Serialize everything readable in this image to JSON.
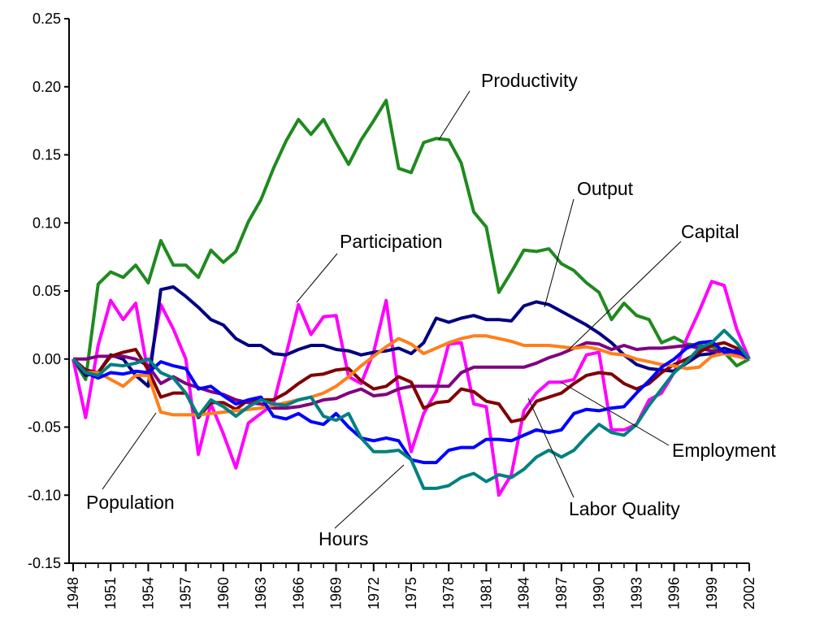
{
  "chart_data": {
    "type": "line",
    "x": [
      1948,
      1949,
      1950,
      1951,
      1952,
      1953,
      1954,
      1955,
      1956,
      1957,
      1958,
      1959,
      1960,
      1961,
      1962,
      1963,
      1964,
      1965,
      1966,
      1967,
      1968,
      1969,
      1970,
      1971,
      1972,
      1973,
      1974,
      1975,
      1976,
      1977,
      1978,
      1979,
      1980,
      1981,
      1982,
      1983,
      1984,
      1985,
      1986,
      1987,
      1988,
      1989,
      1990,
      1991,
      1992,
      1993,
      1994,
      1995,
      1996,
      1997,
      1998,
      1999,
      2000,
      2001,
      2002
    ],
    "xlim": [
      1948,
      2002
    ],
    "xticks": [
      1948,
      1951,
      1954,
      1957,
      1960,
      1963,
      1966,
      1969,
      1972,
      1975,
      1978,
      1981,
      1984,
      1987,
      1990,
      1993,
      1996,
      1999,
      2002
    ],
    "ylim": [
      -0.15,
      0.25
    ],
    "yticks": [
      -0.15,
      {
        "value": -0.1,
        "label": "-0.10"
      },
      -0.05,
      {
        "value": 0,
        "label": "0.00"
      },
      0.05,
      {
        "value": 0.1,
        "label": "0.10"
      },
      0.15,
      {
        "value": 0.2,
        "label": "0.20"
      },
      0.25
    ],
    "series": [
      {
        "name": "Productivity",
        "color": "#1f8a1f",
        "values": [
          0,
          -0.015,
          0.055,
          0.064,
          0.06,
          0.069,
          0.056,
          0.087,
          0.069,
          0.069,
          0.06,
          0.08,
          0.071,
          0.079,
          0.101,
          0.117,
          0.14,
          0.16,
          0.176,
          0.165,
          0.176,
          0.159,
          0.143,
          0.161,
          0.175,
          0.19,
          0.14,
          0.137,
          0.159,
          0.162,
          0.161,
          0.144,
          0.108,
          0.097,
          0.049,
          0.064,
          0.08,
          0.079,
          0.081,
          0.07,
          0.065,
          0.056,
          0.049,
          0.029,
          0.041,
          0.032,
          0.029,
          0.012,
          0.016,
          0.011,
          0.01,
          0.009,
          0.005,
          -0.005,
          0
        ]
      },
      {
        "name": "Output",
        "color": "#ff00ff",
        "values": [
          0,
          -0.043,
          0.01,
          0.043,
          0.029,
          0.041,
          -0.011,
          0.04,
          0.022,
          0,
          -0.07,
          -0.033,
          -0.055,
          -0.08,
          -0.047,
          -0.04,
          -0.033,
          0.003,
          0.04,
          0.018,
          0.031,
          0.032,
          -0.013,
          -0.018,
          0.005,
          0.043,
          -0.025,
          -0.068,
          -0.04,
          -0.024,
          0.011,
          0.012,
          -0.033,
          -0.035,
          -0.1,
          -0.085,
          -0.038,
          -0.025,
          -0.017,
          -0.017,
          -0.015,
          0.003,
          0.005,
          -0.052,
          -0.052,
          -0.048,
          -0.03,
          -0.025,
          -0.01,
          0.015,
          0.035,
          0.057,
          0.054,
          0.022,
          0
        ]
      },
      {
        "name": "Capital",
        "color": "#000080",
        "values": [
          0,
          -0.012,
          -0.01,
          0.003,
          0,
          -0.012,
          -0.02,
          0.051,
          0.053,
          0.046,
          0.038,
          0.029,
          0.025,
          0.015,
          0.01,
          0.01,
          0.004,
          0.003,
          0.007,
          0.01,
          0.01,
          0.007,
          0.006,
          0.003,
          0.005,
          0.006,
          0.008,
          0.004,
          0.012,
          0.03,
          0.027,
          0.03,
          0.032,
          0.029,
          0.029,
          0.028,
          0.039,
          0.042,
          0.04,
          0.035,
          0.03,
          0.025,
          0.019,
          0.012,
          0.003,
          -0.004,
          -0.007,
          -0.008,
          -0.009,
          -0.003,
          0.003,
          0.004,
          0.008,
          0.005,
          0
        ]
      },
      {
        "name": "Participation",
        "color": "#800080",
        "values": [
          0,
          0,
          0.002,
          0.002,
          0.002,
          0,
          -0.005,
          -0.018,
          -0.013,
          -0.018,
          -0.021,
          -0.024,
          -0.026,
          -0.03,
          -0.032,
          -0.033,
          -0.036,
          -0.036,
          -0.035,
          -0.033,
          -0.03,
          -0.029,
          -0.025,
          -0.022,
          -0.027,
          -0.026,
          -0.022,
          -0.02,
          -0.02,
          -0.02,
          -0.02,
          -0.01,
          -0.006,
          -0.006,
          -0.006,
          -0.006,
          -0.006,
          -0.003,
          0.001,
          0.004,
          0.008,
          0.012,
          0.011,
          0.007,
          0.01,
          0.007,
          0.008,
          0.008,
          0.009,
          0.01,
          0.008,
          0.006,
          0.005,
          0.003,
          0
        ]
      },
      {
        "name": "Employment",
        "color": "#800000",
        "values": [
          0,
          -0.008,
          -0.01,
          0.002,
          0.005,
          0.007,
          -0.008,
          -0.028,
          -0.025,
          -0.025,
          -0.043,
          -0.032,
          -0.032,
          -0.037,
          -0.03,
          -0.03,
          -0.03,
          -0.025,
          -0.018,
          -0.012,
          -0.011,
          -0.008,
          -0.007,
          -0.016,
          -0.022,
          -0.02,
          -0.013,
          -0.017,
          -0.036,
          -0.032,
          -0.031,
          -0.022,
          -0.024,
          -0.031,
          -0.033,
          -0.046,
          -0.044,
          -0.031,
          -0.028,
          -0.025,
          -0.018,
          -0.012,
          -0.01,
          -0.011,
          -0.018,
          -0.022,
          -0.018,
          -0.01,
          -0.004,
          0,
          0.005,
          0.01,
          0.012,
          0.008,
          0
        ]
      },
      {
        "name": "Population",
        "color": "#ff7f1a",
        "values": [
          0,
          -0.01,
          -0.01,
          -0.015,
          -0.02,
          -0.012,
          -0.012,
          -0.039,
          -0.041,
          -0.041,
          -0.041,
          -0.04,
          -0.039,
          -0.038,
          -0.037,
          -0.036,
          -0.034,
          -0.032,
          -0.03,
          -0.028,
          -0.025,
          -0.02,
          -0.013,
          -0.005,
          0.002,
          0.009,
          0.015,
          0.011,
          0.004,
          0.008,
          0.012,
          0.015,
          0.017,
          0.017,
          0.015,
          0.013,
          0.01,
          0.01,
          0.01,
          0.009,
          0.008,
          0.009,
          0.007,
          0.004,
          0.003,
          0,
          -0.002,
          -0.004,
          -0.005,
          -0.007,
          -0.006,
          0.002,
          0.004,
          0.002,
          0
        ]
      },
      {
        "name": "Labor Quality",
        "color": "#0000ff",
        "values": [
          0,
          -0.01,
          -0.014,
          -0.01,
          -0.011,
          -0.009,
          -0.01,
          -0.002,
          -0.005,
          -0.007,
          -0.022,
          -0.02,
          -0.027,
          -0.033,
          -0.03,
          -0.028,
          -0.042,
          -0.044,
          -0.04,
          -0.046,
          -0.048,
          -0.04,
          -0.05,
          -0.058,
          -0.06,
          -0.058,
          -0.06,
          -0.074,
          -0.076,
          -0.076,
          -0.067,
          -0.065,
          -0.065,
          -0.059,
          -0.059,
          -0.06,
          -0.056,
          -0.052,
          -0.054,
          -0.052,
          -0.04,
          -0.037,
          -0.038,
          -0.036,
          -0.035,
          -0.025,
          -0.016,
          -0.006,
          0,
          0.008,
          0.012,
          0.013,
          0.005,
          0.006,
          0
        ]
      },
      {
        "name": "Hours",
        "color": "#008080",
        "values": [
          0,
          -0.01,
          -0.012,
          -0.004,
          -0.005,
          -0.003,
          0,
          -0.01,
          -0.014,
          -0.025,
          -0.042,
          -0.03,
          -0.035,
          -0.042,
          -0.035,
          -0.03,
          -0.033,
          -0.034,
          -0.03,
          -0.028,
          -0.042,
          -0.045,
          -0.04,
          -0.058,
          -0.068,
          -0.068,
          -0.067,
          -0.074,
          -0.095,
          -0.095,
          -0.093,
          -0.087,
          -0.084,
          -0.09,
          -0.085,
          -0.087,
          -0.081,
          -0.072,
          -0.067,
          -0.072,
          -0.067,
          -0.057,
          -0.048,
          -0.054,
          -0.056,
          -0.048,
          -0.034,
          -0.022,
          -0.01,
          -0.002,
          0.008,
          0.012,
          0.021,
          0.012,
          0
        ]
      }
    ]
  }
}
